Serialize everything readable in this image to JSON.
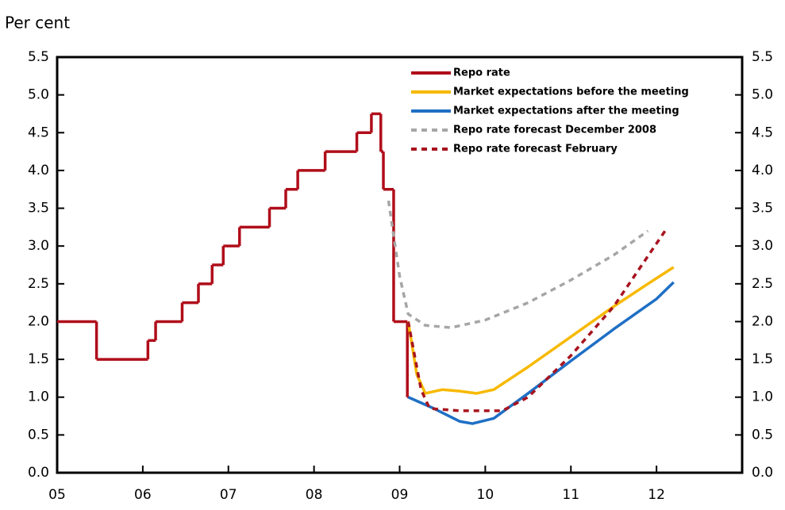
{
  "chart_data": {
    "type": "line",
    "y_label": "Per cent",
    "xlim": [
      2005,
      2013
    ],
    "xticks": [
      {
        "value": 2005,
        "label": "05"
      },
      {
        "value": 2006,
        "label": "06"
      },
      {
        "value": 2007,
        "label": "07"
      },
      {
        "value": 2008,
        "label": "08"
      },
      {
        "value": 2009,
        "label": "09"
      },
      {
        "value": 2010,
        "label": "10"
      },
      {
        "value": 2011,
        "label": "11"
      },
      {
        "value": 2012,
        "label": "12"
      }
    ],
    "ylim": [
      0,
      5.5
    ],
    "yticks": [
      {
        "value": 0,
        "label": "0.0"
      },
      {
        "value": 0.5,
        "label": "0.5"
      },
      {
        "value": 1,
        "label": "1.0"
      },
      {
        "value": 1.5,
        "label": "1.5"
      },
      {
        "value": 2,
        "label": "2.0"
      },
      {
        "value": 2.5,
        "label": "2.5"
      },
      {
        "value": 3,
        "label": "3.0"
      },
      {
        "value": 3.5,
        "label": "3.5"
      },
      {
        "value": 4,
        "label": "4.0"
      },
      {
        "value": 4.5,
        "label": "4.5"
      },
      {
        "value": 5,
        "label": "5.0"
      },
      {
        "value": 5.5,
        "label": "5.5"
      }
    ],
    "series": [
      {
        "name": "Repo rate",
        "color": "#b00d1a",
        "step": "post",
        "dash": false,
        "x": [
          2005,
          2005.46,
          2006.06,
          2006.15,
          2006.46,
          2006.65,
          2006.81,
          2006.94,
          2007.13,
          2007.48,
          2007.67,
          2007.81,
          2008.13,
          2008.5,
          2008.67,
          2008.78,
          2008.81,
          2008.93,
          2009.09,
          2009.11
        ],
        "values": [
          2.0,
          1.5,
          1.75,
          2.0,
          2.25,
          2.5,
          2.75,
          3.0,
          3.25,
          3.5,
          3.75,
          4.0,
          4.25,
          4.5,
          4.75,
          4.25,
          3.75,
          2.0,
          1.0,
          1.0
        ]
      },
      {
        "name": "Market expectations before the meeting",
        "color": "#f7b900",
        "dash": false,
        "x": [
          2009.1,
          2009.2,
          2009.3,
          2009.5,
          2009.7,
          2009.9,
          2010.1,
          2010.5,
          2011.0,
          2011.5,
          2011.9,
          2012.2
        ],
        "values": [
          2.0,
          1.3,
          1.05,
          1.1,
          1.08,
          1.05,
          1.1,
          1.4,
          1.8,
          2.2,
          2.5,
          2.72
        ]
      },
      {
        "name": "Market expectations after the meeting",
        "color": "#1f6fc5",
        "dash": false,
        "x": [
          2009.1,
          2009.4,
          2009.7,
          2009.85,
          2010.1,
          2010.5,
          2011.0,
          2011.5,
          2012.0,
          2012.2
        ],
        "values": [
          1.0,
          0.85,
          0.68,
          0.65,
          0.72,
          1.05,
          1.48,
          1.9,
          2.3,
          2.52
        ]
      },
      {
        "name": "Repo rate forecast December 2008",
        "color": "#a6a6a6",
        "dash": true,
        "x": [
          2008.87,
          2009.0,
          2009.1,
          2009.3,
          2009.6,
          2010.0,
          2010.5,
          2011.0,
          2011.5,
          2011.9
        ],
        "values": [
          3.6,
          2.6,
          2.1,
          1.95,
          1.92,
          2.02,
          2.25,
          2.55,
          2.88,
          3.2
        ]
      },
      {
        "name": "Repo rate forecast February",
        "color": "#a8141f",
        "dash": true,
        "x": [
          2009.1,
          2009.25,
          2009.35,
          2009.7,
          2010.2,
          2010.5,
          2011.0,
          2011.5,
          2011.8,
          2012.1
        ],
        "values": [
          2.0,
          1.1,
          0.85,
          0.82,
          0.82,
          1.0,
          1.55,
          2.2,
          2.7,
          3.2
        ]
      }
    ]
  }
}
